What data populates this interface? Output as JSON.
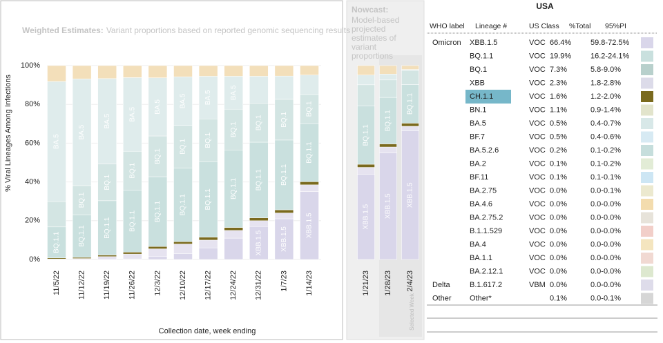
{
  "chart_data": [
    {
      "type": "stacked_bar",
      "title_bold": "Weighted Estimates:",
      "title": "Variant proportions based on reported genomic sequencing results",
      "x_label": "Collection date, week ending",
      "y_label": "% Viral Lineages Among Infections",
      "categories": [
        "11/5/22",
        "11/12/22",
        "11/19/22",
        "11/26/22",
        "12/3/22",
        "12/10/22",
        "12/17/22",
        "12/24/22",
        "12/31/22",
        "1/7/23",
        "1/14/23"
      ],
      "ylim": [
        0,
        100
      ],
      "yticks": [
        {
          "value": 0,
          "label": "0%"
        },
        {
          "value": 20,
          "label": "20%"
        },
        {
          "value": 40,
          "label": "40%"
        },
        {
          "value": 60,
          "label": "60%"
        },
        {
          "value": 80,
          "label": "80%"
        },
        {
          "value": 100,
          "label": "100%"
        }
      ],
      "grid": true,
      "series": [
        {
          "name": "XBB.1.5",
          "color": "#d9d6ea",
          "values": [
            0,
            0,
            0,
            0.3,
            1.5,
            3,
            6,
            11,
            17,
            21,
            35
          ]
        },
        {
          "name": "XBB",
          "color": "#e6e3f0",
          "values": [
            0.3,
            0.5,
            1.5,
            2.5,
            4,
            5,
            4,
            4,
            3,
            3,
            3.5
          ]
        },
        {
          "name": "CH.1.1",
          "color": "#7a6a1e",
          "values": [
            0.5,
            0.6,
            0.8,
            1,
            1.2,
            1.2,
            1.5,
            1.5,
            1.5,
            1.6,
            1.6
          ]
        },
        {
          "name": "BQ.1.1",
          "color": "#c9e0de",
          "values": [
            16,
            22,
            28,
            32,
            36,
            38,
            39,
            40,
            39,
            36,
            30
          ]
        },
        {
          "name": "BQ.1",
          "color": "#d3e5e3",
          "values": [
            13,
            15,
            19,
            20,
            21,
            22,
            22,
            21,
            20,
            21,
            15
          ]
        },
        {
          "name": "BA.5",
          "color": "#dfecec",
          "values": [
            62,
            55,
            44,
            38,
            30,
            25,
            22,
            17,
            14,
            12,
            10
          ]
        },
        {
          "name": "Other",
          "color": "#f3dfba",
          "values": [
            8.2,
            6.9,
            6.7,
            6.2,
            6.3,
            5.8,
            5.5,
            5.5,
            5.5,
            5.4,
            4.9
          ]
        }
      ]
    },
    {
      "type": "stacked_bar",
      "title_bold": "Nowcast:",
      "title": "Model-based projected estimates of variant proportions",
      "annotation": "Selected Week",
      "categories": [
        "1/21/23",
        "1/28/23",
        "2/4/23"
      ],
      "ylim": [
        0,
        100
      ],
      "series": [
        {
          "name": "XBB.1.5",
          "color": "#d9d6ea",
          "values": [
            44,
            55,
            66.4
          ]
        },
        {
          "name": "XBB",
          "color": "#e6e3f0",
          "values": [
            3.5,
            3,
            2.3
          ]
        },
        {
          "name": "CH.1.1",
          "color": "#7a6a1e",
          "values": [
            1.6,
            1.6,
            1.6
          ]
        },
        {
          "name": "BQ.1.1",
          "color": "#c9e0de",
          "values": [
            30,
            24,
            19.9
          ]
        },
        {
          "name": "BQ.1",
          "color": "#d3e5e3",
          "values": [
            11,
            9,
            7.3
          ]
        },
        {
          "name": "BA.5",
          "color": "#dfecec",
          "values": [
            5,
            3,
            0.5
          ]
        },
        {
          "name": "Other",
          "color": "#f3dfba",
          "values": [
            4.9,
            4.4,
            2
          ]
        }
      ]
    }
  ],
  "table": {
    "title": "USA",
    "headers": [
      "WHO label",
      "Lineage #",
      "US Class",
      "%Total",
      "95%PI"
    ],
    "groups": [
      {
        "label": "Omicron",
        "rows": [
          {
            "lineage": "XBB.1.5",
            "class": "VOC",
            "total": "66.4%",
            "pi": "59.8-72.5%",
            "color": "#d9d6ea"
          },
          {
            "lineage": "BQ.1.1",
            "class": "VOC",
            "total": "19.9%",
            "pi": "16.2-24.1%",
            "color": "#c9e0de"
          },
          {
            "lineage": "BQ.1",
            "class": "VOC",
            "total": "7.3%",
            "pi": "5.8-9.0%",
            "color": "#b8d0cc"
          },
          {
            "lineage": "XBB",
            "class": "VOC",
            "total": "2.3%",
            "pi": "1.8-2.8%",
            "color": "#dcdbe9"
          },
          {
            "lineage": "CH.1.1",
            "class": "VOC",
            "total": "1.6%",
            "pi": "1.2-2.0%",
            "color": "#7a6a1e",
            "selected": true
          },
          {
            "lineage": "BN.1",
            "class": "VOC",
            "total": "1.1%",
            "pi": "0.9-1.4%",
            "color": "#e2e4cc"
          },
          {
            "lineage": "BA.5",
            "class": "VOC",
            "total": "0.5%",
            "pi": "0.4-0.7%",
            "color": "#d8e8e8"
          },
          {
            "lineage": "BF.7",
            "class": "VOC",
            "total": "0.5%",
            "pi": "0.4-0.6%",
            "color": "#d7eaf3"
          },
          {
            "lineage": "BA.5.2.6",
            "class": "VOC",
            "total": "0.2%",
            "pi": "0.1-0.2%",
            "color": "#c6dedc"
          },
          {
            "lineage": "BA.2",
            "class": "VOC",
            "total": "0.1%",
            "pi": "0.1-0.2%",
            "color": "#e2ecd6"
          },
          {
            "lineage": "BF.11",
            "class": "VOC",
            "total": "0.1%",
            "pi": "0.1-0.1%",
            "color": "#cde6f4"
          },
          {
            "lineage": "BA.2.75",
            "class": "VOC",
            "total": "0.0%",
            "pi": "0.0-0.1%",
            "color": "#ece9cf"
          },
          {
            "lineage": "BA.4.6",
            "class": "VOC",
            "total": "0.0%",
            "pi": "0.0-0.0%",
            "color": "#f3dcae"
          },
          {
            "lineage": "BA.2.75.2",
            "class": "VOC",
            "total": "0.0%",
            "pi": "0.0-0.0%",
            "color": "#e7e3da"
          },
          {
            "lineage": "B.1.1.529",
            "class": "VOC",
            "total": "0.0%",
            "pi": "0.0-0.0%",
            "color": "#f2cfc9"
          },
          {
            "lineage": "BA.4",
            "class": "VOC",
            "total": "0.0%",
            "pi": "0.0-0.0%",
            "color": "#f4e5bf"
          },
          {
            "lineage": "BA.1.1",
            "class": "VOC",
            "total": "0.0%",
            "pi": "0.0-0.0%",
            "color": "#f1d9d2"
          },
          {
            "lineage": "BA.2.12.1",
            "class": "VOC",
            "total": "0.0%",
            "pi": "0.0-0.0%",
            "color": "#dde8cf"
          }
        ]
      },
      {
        "label": "Delta",
        "rows": [
          {
            "lineage": "B.1.617.2",
            "class": "VBM",
            "total": "0.0%",
            "pi": "0.0-0.0%",
            "color": "#dedcea"
          }
        ]
      },
      {
        "label": "Other",
        "rows": [
          {
            "lineage": "Other*",
            "class": null,
            "total": "0.1%",
            "pi": "0.0-0.1%",
            "color": "#d6d6d6"
          }
        ]
      }
    ]
  }
}
